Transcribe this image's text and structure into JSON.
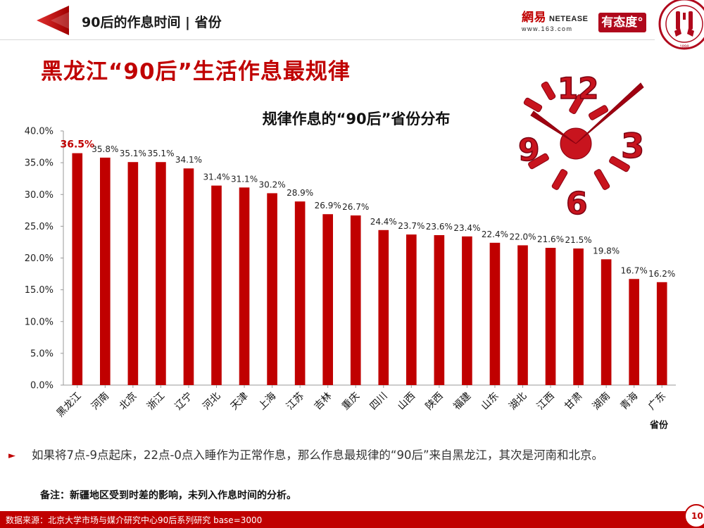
{
  "header": {
    "title": "90后的作息时间 | 省份",
    "logo_netease_cn": "網易",
    "logo_netease_en": "NETEASE",
    "logo_netease_url": "www.163.com",
    "logo_youtaidu": "有态度°",
    "seal_year": "1898"
  },
  "main_title": "黑龙江“90后”生活作息最规律",
  "chart_data": {
    "type": "bar",
    "title": "规律作息的“90后”省份分布",
    "xlabel": "省份",
    "ylabel": "",
    "ylim": [
      0,
      40
    ],
    "yticks": [
      "0.0%",
      "5.0%",
      "10.0%",
      "15.0%",
      "20.0%",
      "25.0%",
      "30.0%",
      "35.0%",
      "40.0%"
    ],
    "categories": [
      "黑龙江",
      "河南",
      "北京",
      "浙江",
      "辽宁",
      "河北",
      "天津",
      "上海",
      "江苏",
      "吉林",
      "重庆",
      "四川",
      "山西",
      "陕西",
      "福建",
      "山东",
      "湖北",
      "江西",
      "甘肃",
      "湖南",
      "青海",
      "广东"
    ],
    "values": [
      36.5,
      35.8,
      35.1,
      35.1,
      34.1,
      31.4,
      31.1,
      30.2,
      28.9,
      26.9,
      26.7,
      24.4,
      23.7,
      23.6,
      23.4,
      22.4,
      22.0,
      21.6,
      21.5,
      19.8,
      16.7,
      16.2
    ],
    "labels": [
      "36.5%",
      "35.8%",
      "35.1%",
      "35.1%",
      "34.1%",
      "31.4%",
      "31.1%",
      "30.2%",
      "28.9%",
      "26.9%",
      "26.7%",
      "24.4%",
      "23.7%",
      "23.6%",
      "23.4%",
      "22.4%",
      "22.0%",
      "21.6%",
      "21.5%",
      "19.8%",
      "16.7%",
      "16.2%"
    ],
    "bar_color": "#c00000",
    "highlight_label_color": "#c00000",
    "grid": false,
    "legend": "none"
  },
  "clock_numbers": [
    "12",
    "3",
    "6",
    "9"
  ],
  "bullet_text": "如果将7点-9点起床，22点-0点入睡作为正常作息，那么作息最规律的“90后”来自黑龙江，其次是河南和北京。",
  "note_text": "备注：新疆地区受到时差的影响，未列入作息时间的分析。",
  "footer": {
    "source": "数据来源：北京大学市场与媒介研究中心90后系列研究 base=3000",
    "page": "10"
  },
  "colors": {
    "accent": "#c00000",
    "text": "#222222"
  }
}
